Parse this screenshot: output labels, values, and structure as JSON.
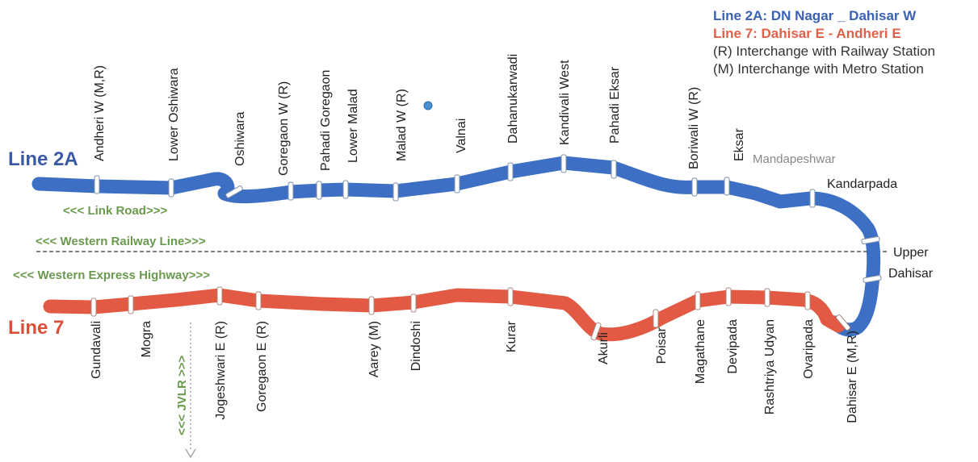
{
  "legend": {
    "line2a_name": "Line 2A:",
    "line2a_route": "DN Nagar _ Dahisar W",
    "line7": "Line 7: Dahisar E - Andheri E",
    "note_r": "(R) Interchange with Railway Station",
    "note_m": "(M) Interchange with Metro Station"
  },
  "lines": {
    "line2a": {
      "label": "Line 2A",
      "color": "#3d6fc4",
      "label_color": "#3b5aa5"
    },
    "line7": {
      "label": "Line 7",
      "color": "#e25a44",
      "label_color": "#d9503d"
    }
  },
  "corridors": {
    "link_road": "<<< Link Road>>>",
    "western_railway": "<<< Western Railway Line>>>",
    "western_express": "<<< Western Express  Highway>>>",
    "jvlr": "<<< JVLR >>>",
    "label_color": "#6a9a4e"
  },
  "stations": {
    "line2a_top": [
      "Andheri W (M,R)",
      "Lower Oshiwara",
      "Oshiwara",
      "Goregaon W (R)",
      "Pahadi Goregaon",
      "Lower Malad",
      "Malad W (R)",
      "Valnai",
      "Dahanukarwadi",
      "Kandivali West",
      "Pahadi Eksar",
      "Boriwali W (R)",
      "Eksar"
    ],
    "line2a_side": [
      "Mandapeshwar",
      "Kandarpada",
      "Upper",
      "Dahisar"
    ],
    "line7_bottom": [
      "Gundavali",
      "Mogra",
      "Jogeshwari E (R)",
      "Goregaon E  (R)",
      "Aarey (M)",
      "Dindoshi",
      "Kurar",
      "Akurli",
      "Poisar",
      "Magathane",
      "Devipada",
      "Rashtriya Udyan",
      "Ovaripada",
      "Dahisar E (M,R)"
    ]
  }
}
